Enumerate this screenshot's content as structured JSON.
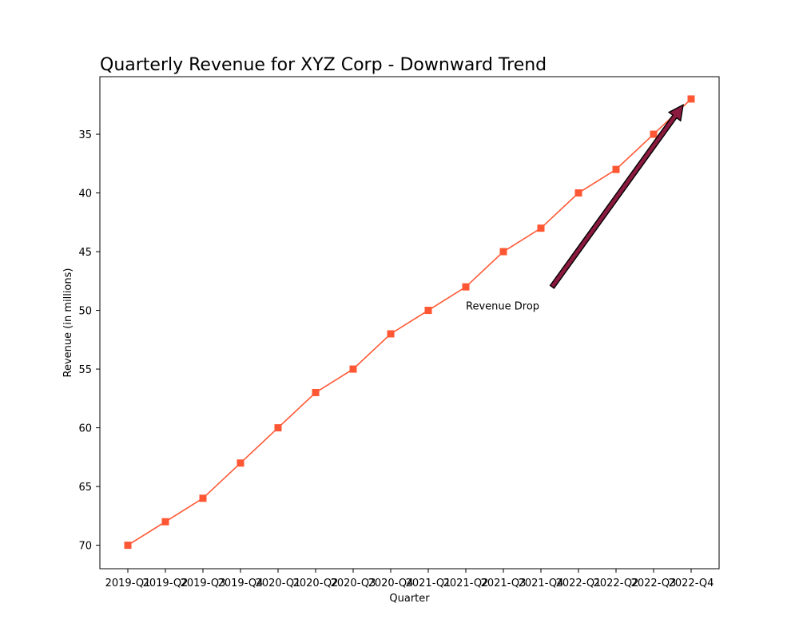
{
  "chart_data": {
    "type": "line",
    "title": "Quarterly Revenue for XYZ Corp - Downward Trend",
    "xlabel": "Quarter",
    "ylabel": "Revenue (in millions)",
    "categories": [
      "2019-Q1",
      "2019-Q2",
      "2019-Q3",
      "2019-Q4",
      "2020-Q1",
      "2020-Q2",
      "2020-Q3",
      "2020-Q4",
      "2021-Q1",
      "2021-Q2",
      "2021-Q3",
      "2021-Q4",
      "2022-Q1",
      "2022-Q2",
      "2022-Q3",
      "2022-Q4"
    ],
    "series": [
      {
        "values": [
          70,
          68,
          66,
          63,
          60,
          57,
          55,
          52,
          50,
          48,
          45,
          43,
          40,
          38,
          35,
          32
        ],
        "color": "#ff5733",
        "marker": "square"
      }
    ],
    "ylim": [
      72,
      30.1
    ],
    "y_inverted": true,
    "yticks": [
      35,
      40,
      45,
      50,
      55,
      60,
      65,
      70
    ],
    "grid": false,
    "annotation": {
      "text": "Revenue Drop",
      "text_at": {
        "x": "2021-Q2",
        "y": 50
      },
      "arrow_from": {
        "x": "2021-Q4",
        "y": 48
      },
      "arrow_to": {
        "x": "2022-Q4",
        "y": 32.5
      },
      "arrow_color": "#8b1a3f"
    }
  }
}
